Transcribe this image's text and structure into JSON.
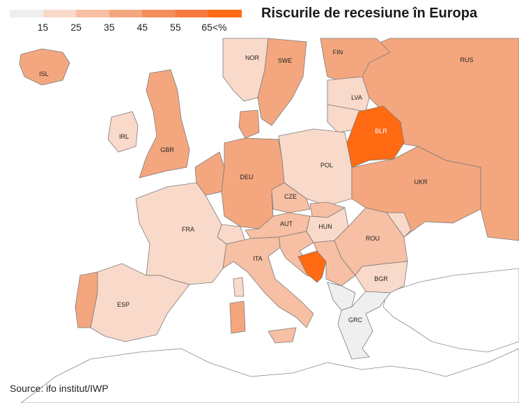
{
  "title": "Riscurile de recesiune în Europa",
  "source": "Source: ifo institut/IWP",
  "legend": {
    "colors": [
      "#efefef",
      "#f9d9c9",
      "#f7bfa3",
      "#f4a77f",
      "#f58c5b",
      "#f77a3c",
      "#ff6a13"
    ],
    "ticks": [
      "15",
      "25",
      "35",
      "45",
      "55",
      "65<%"
    ]
  },
  "countries": [
    {
      "code": "ISL",
      "risk_bin": 3
    },
    {
      "code": "NOR",
      "risk_bin": 1
    },
    {
      "code": "SWE",
      "risk_bin": 3
    },
    {
      "code": "FIN",
      "risk_bin": 3
    },
    {
      "code": "RUS",
      "risk_bin": 3
    },
    {
      "code": "LVA",
      "risk_bin": 1
    },
    {
      "code": "IRL",
      "risk_bin": 1
    },
    {
      "code": "GBR",
      "risk_bin": 3
    },
    {
      "code": "BLR",
      "risk_bin": 6
    },
    {
      "code": "DEU",
      "risk_bin": 3
    },
    {
      "code": "POL",
      "risk_bin": 1
    },
    {
      "code": "CZE",
      "risk_bin": 2
    },
    {
      "code": "UKR",
      "risk_bin": 3
    },
    {
      "code": "FRA",
      "risk_bin": 1
    },
    {
      "code": "AUT",
      "risk_bin": 2
    },
    {
      "code": "HUN",
      "risk_bin": 1
    },
    {
      "code": "ROU",
      "risk_bin": 2
    },
    {
      "code": "ITA",
      "risk_bin": 2
    },
    {
      "code": "BGR",
      "risk_bin": 1
    },
    {
      "code": "ESP",
      "risk_bin": 1
    },
    {
      "code": "GRC",
      "risk_bin": 0
    }
  ]
}
